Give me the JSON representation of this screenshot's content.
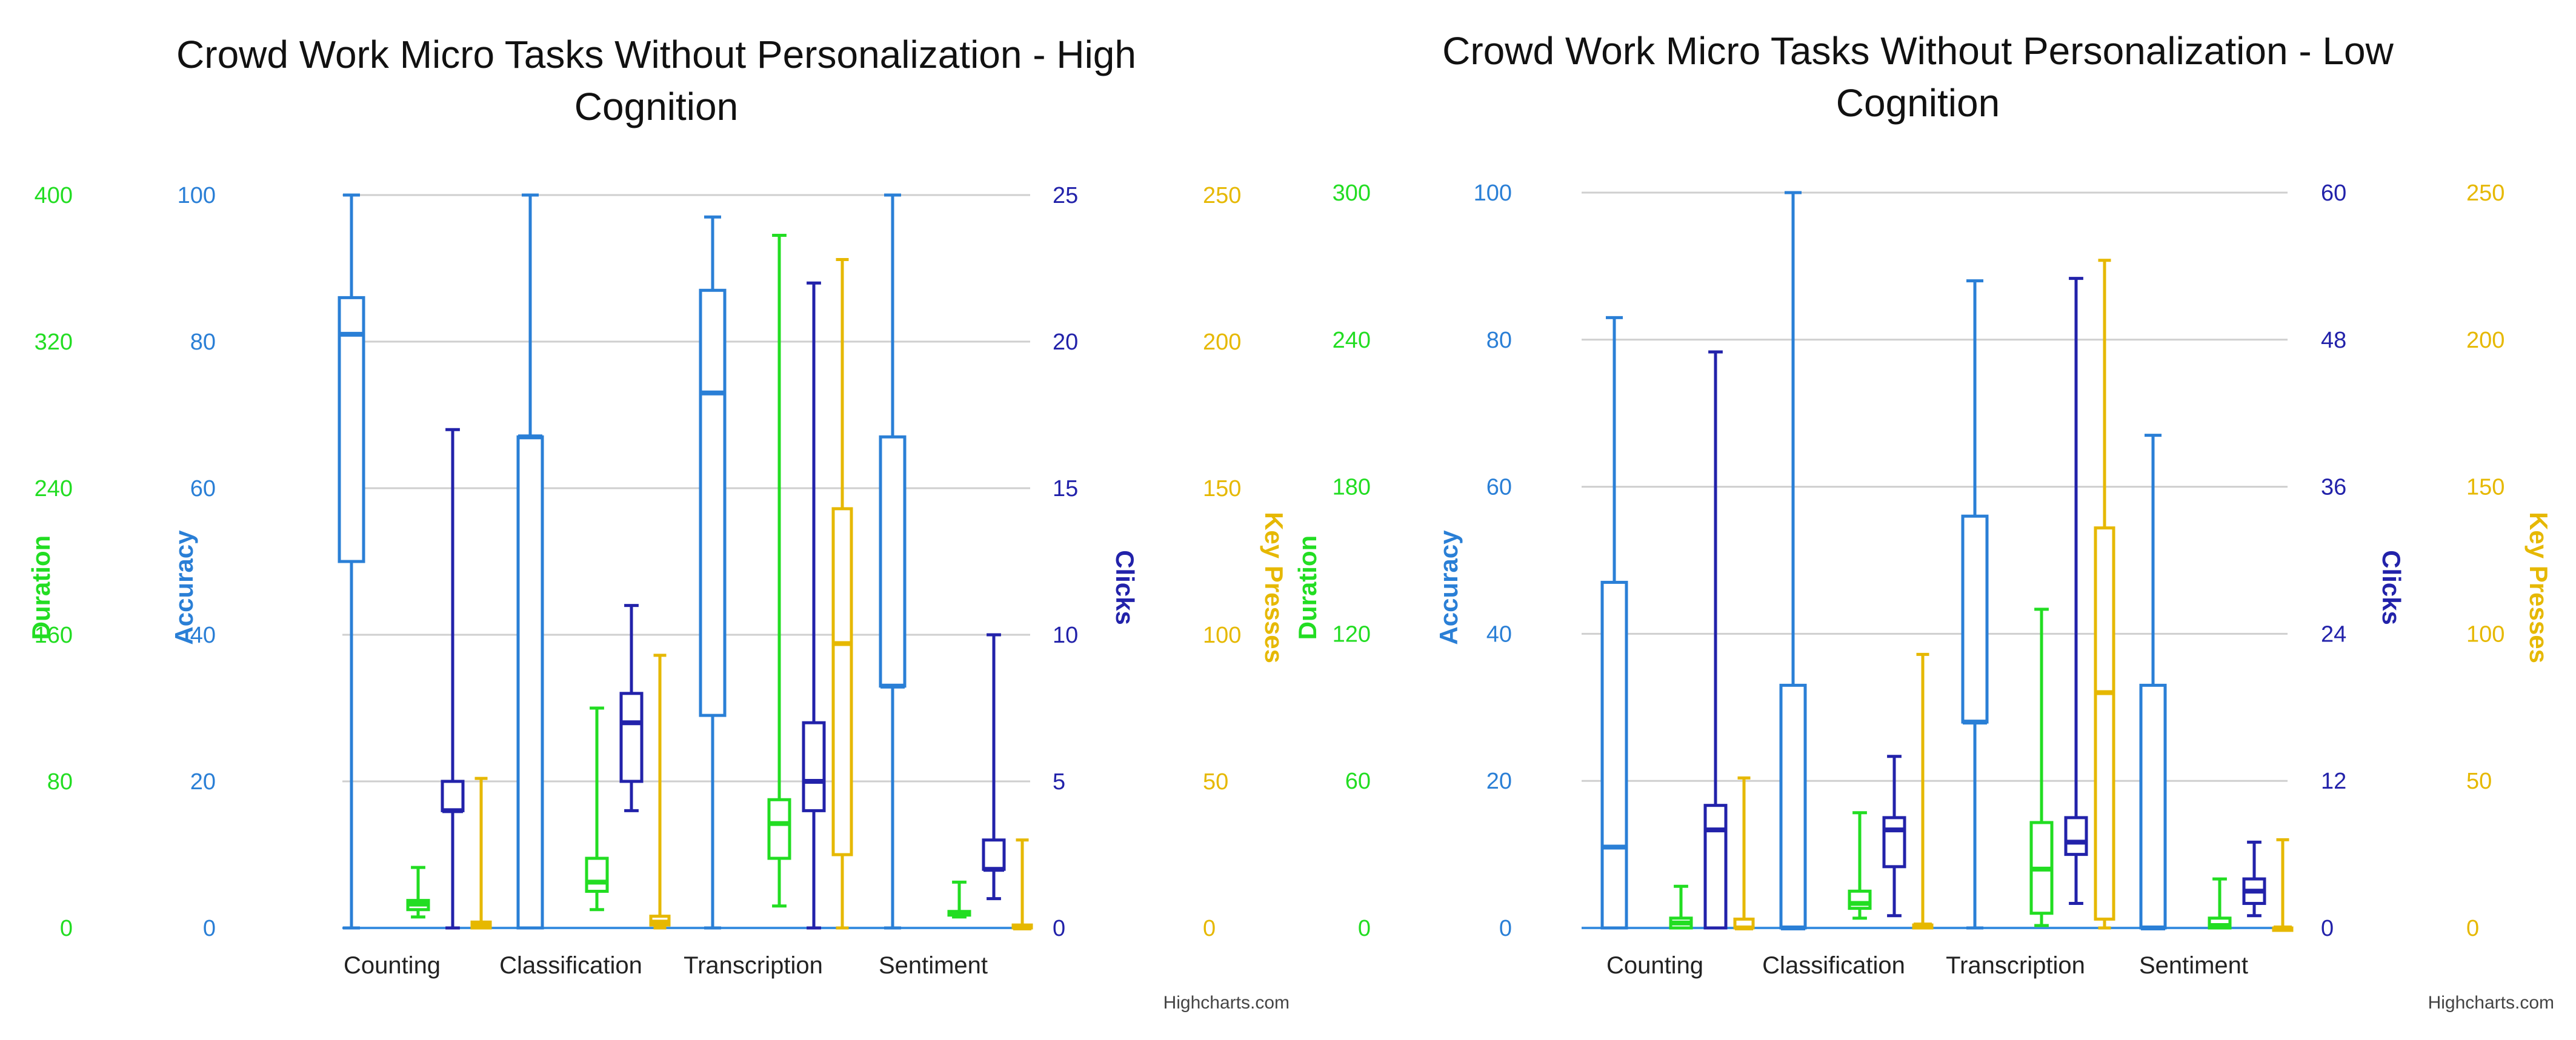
{
  "colors": {
    "duration": "#22dd22",
    "accuracy": "#2a7fd6",
    "clicks": "#2222aa",
    "key_presses": "#e6b800",
    "grid": "#cfcfcf",
    "axis_line": "#3b8fe0",
    "title": "#111111",
    "category_label": "#222222",
    "credits": "#444444"
  },
  "chart_data": [
    {
      "type": "boxplot",
      "title": "Crowd Work Micro Tasks Without Personalization - High Cognition",
      "title_lines": [
        "Crowd Work Micro Tasks Without Personalization - High",
        "Cognition"
      ],
      "credits": "Highcharts.com",
      "categories": [
        "Counting",
        "Classification",
        "Transcription",
        "Sentiment"
      ],
      "axes": {
        "duration": {
          "label": "Duration",
          "min": 0,
          "max": 400,
          "ticks": [
            0,
            80,
            160,
            240,
            320,
            400
          ]
        },
        "accuracy": {
          "label": "Accuracy",
          "min": 0,
          "max": 100,
          "ticks": [
            0,
            20,
            40,
            60,
            80,
            100
          ]
        },
        "clicks": {
          "label": "Clicks",
          "min": 0,
          "max": 25,
          "ticks": [
            0,
            5,
            10,
            15,
            20,
            25
          ]
        },
        "key_presses": {
          "label": "Key Presses",
          "min": 0,
          "max": 250,
          "ticks": [
            0,
            50,
            100,
            150,
            200,
            250
          ]
        }
      },
      "series": [
        {
          "name": "Accuracy",
          "axis": "accuracy",
          "boxes": [
            [
              0,
              50,
              81,
              86,
              100
            ],
            [
              0,
              0,
              67,
              67,
              100
            ],
            [
              0,
              29,
              73,
              87,
              97
            ],
            [
              0,
              33,
              33,
              67,
              100
            ]
          ]
        },
        {
          "name": "Duration",
          "axis": "duration",
          "boxes": [
            [
              6,
              10,
              13,
              15,
              33
            ],
            [
              10,
              20,
              25,
              38,
              120
            ],
            [
              12,
              38,
              57,
              70,
              378
            ],
            [
              6,
              7,
              8,
              9,
              25
            ]
          ]
        },
        {
          "name": "Clicks",
          "axis": "clicks",
          "boxes": [
            [
              0,
              4,
              4,
              5,
              17
            ],
            [
              4,
              5,
              7,
              8,
              11
            ],
            [
              0,
              4,
              5,
              7,
              22
            ],
            [
              1,
              2,
              2,
              3,
              10
            ]
          ]
        },
        {
          "name": "Key Presses",
          "axis": "key_presses",
          "boxes": [
            [
              0,
              0,
              1,
              2,
              51
            ],
            [
              0,
              1,
              2,
              4,
              93
            ],
            [
              0,
              25,
              97,
              143,
              228
            ],
            [
              0,
              0,
              0,
              1,
              30
            ]
          ]
        }
      ]
    },
    {
      "type": "boxplot",
      "title": "Crowd Work Micro Tasks Without Personalization - Low Cognition",
      "title_lines": [
        "Crowd Work Micro Tasks Without Personalization - Low",
        "Cognition"
      ],
      "credits": "Highcharts.com",
      "categories": [
        "Counting",
        "Classification",
        "Transcription",
        "Sentiment"
      ],
      "axes": {
        "duration": {
          "label": "Duration",
          "min": 0,
          "max": 300,
          "ticks": [
            0,
            60,
            120,
            180,
            240,
            300
          ]
        },
        "accuracy": {
          "label": "Accuracy",
          "min": 0,
          "max": 100,
          "ticks": [
            0,
            20,
            40,
            60,
            80,
            100
          ]
        },
        "clicks": {
          "label": "Clicks",
          "min": 0,
          "max": 60,
          "ticks": [
            0,
            12,
            24,
            36,
            48,
            60
          ]
        },
        "key_presses": {
          "label": "Key Presses",
          "min": 0,
          "max": 250,
          "ticks": [
            0,
            50,
            100,
            150,
            200,
            250
          ]
        }
      },
      "series": [
        {
          "name": "Accuracy",
          "axis": "accuracy",
          "boxes": [
            [
              0,
              0,
              11,
              47,
              83
            ],
            [
              0,
              0,
              0,
              33,
              100
            ],
            [
              0,
              28,
              28,
              56,
              88
            ],
            [
              0,
              0,
              0,
              33,
              67
            ]
          ]
        },
        {
          "name": "Duration",
          "axis": "duration",
          "boxes": [
            [
              0,
              0,
              2,
              4,
              17
            ],
            [
              4,
              8,
              10,
              15,
              47
            ],
            [
              1,
              6,
              24,
              43,
              130
            ],
            [
              0,
              0,
              1,
              4,
              20
            ]
          ]
        },
        {
          "name": "Clicks",
          "axis": "clicks",
          "boxes": [
            [
              0,
              0,
              8,
              10,
              47
            ],
            [
              1,
              5,
              8,
              9,
              14
            ],
            [
              2,
              6,
              7,
              9,
              53
            ],
            [
              1,
              2,
              3,
              4,
              7
            ]
          ]
        },
        {
          "name": "Key Presses",
          "axis": "key_presses",
          "boxes": [
            [
              0,
              0,
              0,
              3,
              51
            ],
            [
              0,
              0,
              1,
              1,
              93
            ],
            [
              0,
              3,
              80,
              136,
              227
            ],
            [
              0,
              0,
              0,
              0,
              30
            ]
          ]
        }
      ]
    }
  ]
}
